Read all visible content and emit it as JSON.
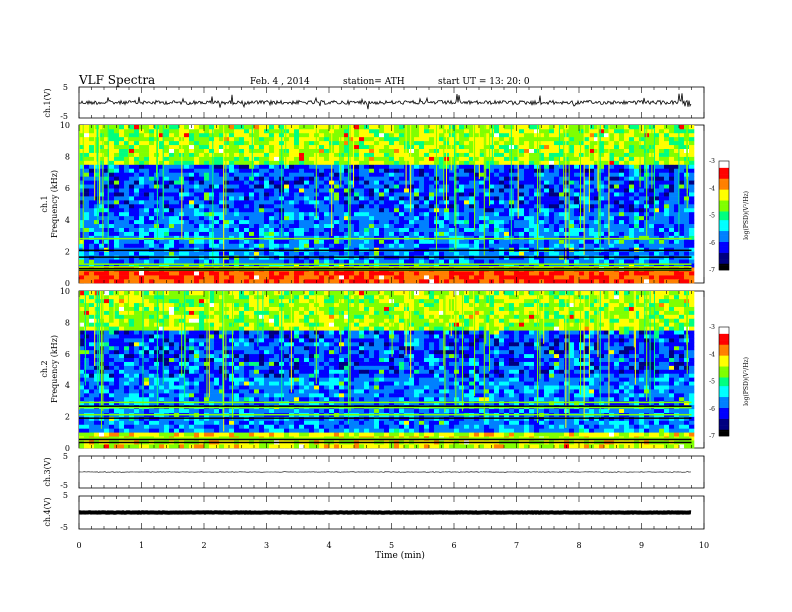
{
  "header": {
    "title": "VLF  Spectra",
    "date": "Feb. 4  , 2014",
    "station": "station= ATH",
    "start": "start  UT =    13: 20: 0"
  },
  "chart_data": [
    {
      "type": "line",
      "ylabel": "ch.1(V)",
      "ylim": [
        -5,
        5
      ],
      "yticks": [
        "5",
        "-5"
      ],
      "x_range": [
        0,
        9.8
      ],
      "trace_level": 0,
      "trace_noise": "high"
    },
    {
      "type": "heatmap",
      "ylabel_line1": "ch.1",
      "ylabel_line2": "Frequency  (kHz)",
      "ylim": [
        0,
        10
      ],
      "yticks": [
        "0",
        "2",
        "4",
        "6",
        "8",
        "10"
      ],
      "x_range": [
        0,
        9.8
      ],
      "colorbar": {
        "label": "log(PSD)(V²/Hz)",
        "ticks": [
          "-3",
          "-4",
          "-5",
          "-6",
          "-7"
        ],
        "range": [
          -7,
          -3
        ]
      }
    },
    {
      "type": "heatmap",
      "ylabel_line1": "ch.2",
      "ylabel_line2": "Frequency  (kHz)",
      "ylim": [
        0,
        10
      ],
      "yticks": [
        "0",
        "2",
        "4",
        "6",
        "8",
        "10"
      ],
      "x_range": [
        0,
        9.8
      ],
      "colorbar": {
        "label": "log(PSD)(V²/Hz)",
        "ticks": [
          "-3",
          "-4",
          "-5",
          "-6",
          "-7"
        ],
        "range": [
          -7,
          -3
        ]
      }
    },
    {
      "type": "line",
      "ylabel": "ch.3(V)",
      "ylim": [
        -5,
        5
      ],
      "yticks": [
        "5",
        "-5"
      ],
      "x_range": [
        0,
        9.8
      ],
      "trace_level": 0,
      "trace_noise": "low"
    },
    {
      "type": "line",
      "ylabel": "ch.4(V)",
      "ylim": [
        -5,
        5
      ],
      "yticks": [
        "5",
        "-5"
      ],
      "x_range": [
        0,
        9.8
      ],
      "trace_level": 0,
      "trace_noise": "thick"
    }
  ],
  "xaxis": {
    "label": "Time  (min)",
    "range": [
      0,
      10
    ],
    "ticks": [
      "0",
      "1",
      "2",
      "3",
      "4",
      "5",
      "6",
      "7",
      "8",
      "9",
      "10"
    ]
  },
  "colors": {
    "colormap": [
      "#000000",
      "#000080",
      "#0000ff",
      "#0080ff",
      "#00ffff",
      "#00ff80",
      "#80ff00",
      "#ffff00",
      "#ff8000",
      "#ff0000",
      "#ffffff"
    ]
  }
}
